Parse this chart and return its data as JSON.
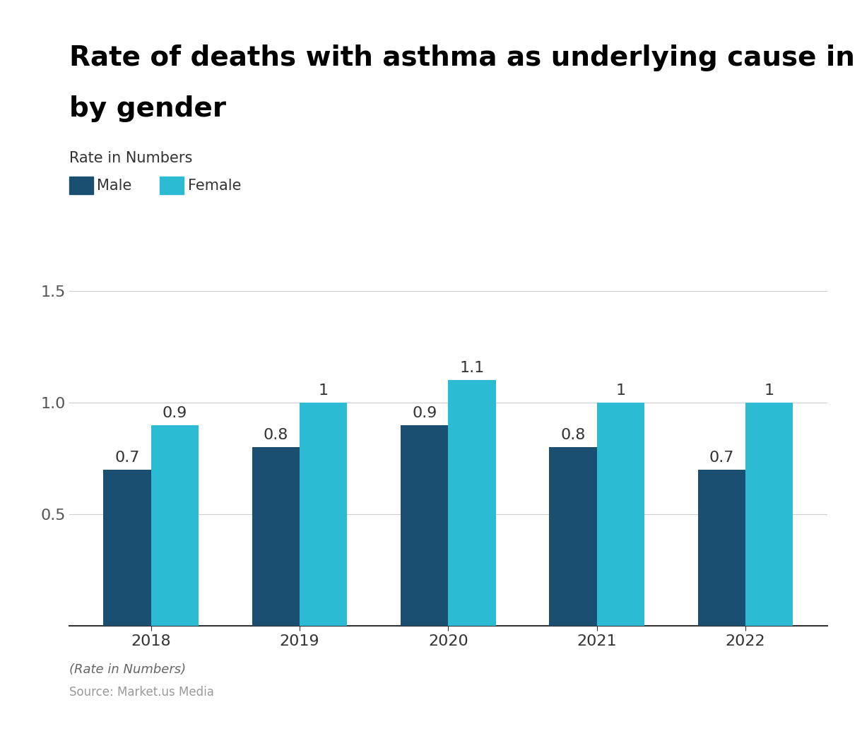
{
  "title_line1": "Rate of deaths with asthma as underlying cause in the U.S.",
  "title_line2": "by gender",
  "subtitle": "Rate in Numbers",
  "years": [
    "2018",
    "2019",
    "2020",
    "2021",
    "2022"
  ],
  "male_values": [
    0.7,
    0.8,
    0.9,
    0.8,
    0.7
  ],
  "female_values": [
    0.9,
    1.0,
    1.1,
    1.0,
    1.0
  ],
  "male_color": "#1b4f72",
  "female_color": "#2bbcd4",
  "ylim": [
    0,
    1.65
  ],
  "yticks": [
    0.5,
    1.0,
    1.5
  ],
  "bar_width": 0.32,
  "background_color": "#ffffff",
  "grid_color": "#cccccc",
  "title_fontsize": 28,
  "subtitle_fontsize": 15,
  "tick_fontsize": 16,
  "legend_fontsize": 15,
  "annotation_fontsize": 16,
  "footer_italic": "(Rate in Numbers)",
  "footer_source": "Source: Market.us Media",
  "footer_color": "#999999",
  "footer_italic_color": "#666666"
}
